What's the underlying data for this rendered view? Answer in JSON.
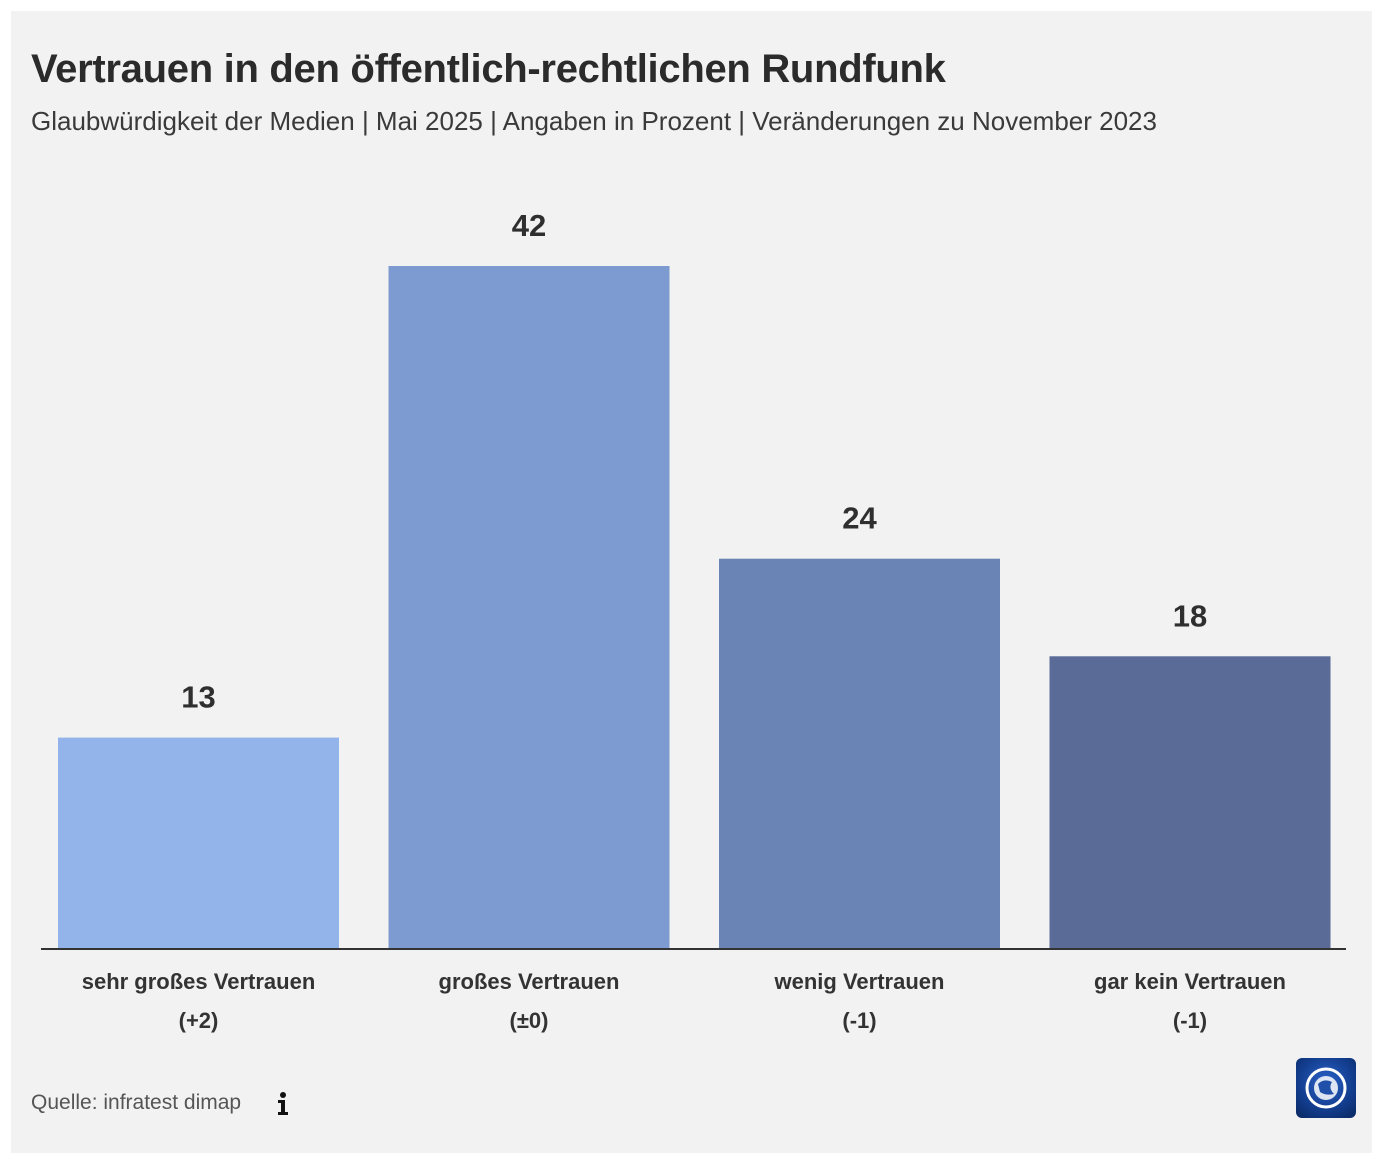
{
  "header": {
    "title": "Vertrauen in den öffentlich-rechtlichen Rundfunk",
    "subtitle": "Glaubwürdigkeit der Medien | Mai 2025 | Angaben in Prozent | Veränderungen zu November 2023"
  },
  "chart_data": {
    "type": "bar",
    "title": "Vertrauen in den öffentlich-rechtlichen Rundfunk",
    "subtitle": "Glaubwürdigkeit der Medien | Mai 2025 | Angaben in Prozent | Veränderungen zu November 2023",
    "categories": [
      "sehr großes Vertrauen",
      "großes Vertrauen",
      "wenig Vertrauen",
      "gar kein Vertrauen"
    ],
    "changes": [
      "(+2)",
      "(±0)",
      "(-1)",
      "(-1)"
    ],
    "values": [
      13,
      42,
      24,
      18
    ],
    "colors": [
      "#92b4ea",
      "#7d9bd1",
      "#6a84b5",
      "#5a6b98"
    ],
    "xlabel": "",
    "ylabel": "",
    "ylim": [
      0,
      42
    ],
    "grid": false,
    "legend": "none"
  },
  "footer": {
    "source": "Quelle: infratest dimap",
    "info_icon": "info-icon",
    "logo_icon": "tagesschau-logo-icon"
  }
}
